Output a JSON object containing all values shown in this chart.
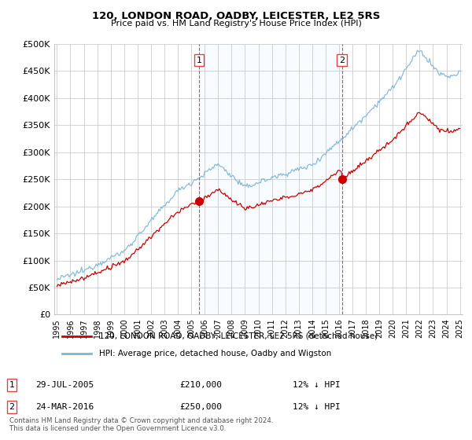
{
  "title": "120, LONDON ROAD, OADBY, LEICESTER, LE2 5RS",
  "subtitle": "Price paid vs. HM Land Registry's House Price Index (HPI)",
  "hpi_label": "HPI: Average price, detached house, Oadby and Wigston",
  "price_label": "120, LONDON ROAD, OADBY, LEICESTER, LE2 5RS (detached house)",
  "hpi_color": "#7ab4d8",
  "price_color": "#cc0000",
  "vline_color": "#dd4444",
  "shade_color": "#ddeeff",
  "marker_color": "#cc0000",
  "background_color": "#ffffff",
  "grid_color": "#cccccc",
  "ylim": [
    0,
    500000
  ],
  "yticks": [
    0,
    50000,
    100000,
    150000,
    200000,
    250000,
    300000,
    350000,
    400000,
    450000,
    500000
  ],
  "ytick_labels": [
    "£0",
    "£50K",
    "£100K",
    "£150K",
    "£200K",
    "£250K",
    "£300K",
    "£350K",
    "£400K",
    "£450K",
    "£500K"
  ],
  "sale1_year": 2005.58,
  "sale1_price": 210000,
  "sale2_year": 2016.21,
  "sale2_price": 250000,
  "sale1_date": "29-JUL-2005",
  "sale1_amount": "£210,000",
  "sale1_hpi": "12% ↓ HPI",
  "sale2_date": "24-MAR-2016",
  "sale2_amount": "£250,000",
  "sale2_hpi": "12% ↓ HPI",
  "footer": "Contains HM Land Registry data © Crown copyright and database right 2024.\nThis data is licensed under the Open Government Licence v3.0.",
  "xmin": 1995,
  "xmax": 2025
}
